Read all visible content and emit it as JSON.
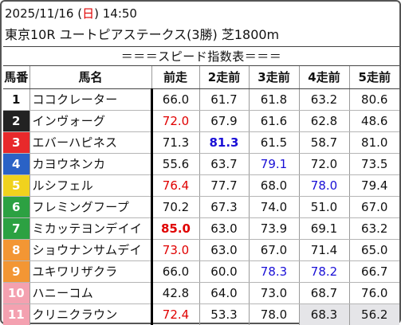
{
  "header": {
    "date": "2025/11/16",
    "weekday_open": " (",
    "weekday": "日",
    "weekday_close": ") ",
    "time": "14:50",
    "race": "東京10R ユートピアステークス(3勝) 芝1800m"
  },
  "section_title": "＝＝＝スピード指数表＝＝＝",
  "table": {
    "headers": [
      "馬番",
      "馬名",
      "前走",
      "2走前",
      "3走前",
      "4走前",
      "5走前"
    ],
    "rows": [
      {
        "no": "1",
        "name": "ココクレーター",
        "bg": "#ffffff",
        "fg": "#111111",
        "vals": [
          "66.0",
          "61.7",
          "61.8",
          "63.2",
          "80.6"
        ],
        "styles": [
          "",
          "",
          "",
          "",
          ""
        ]
      },
      {
        "no": "2",
        "name": "インヴォーグ",
        "bg": "#222222",
        "fg": "#ffffff",
        "vals": [
          "72.0",
          "67.9",
          "61.6",
          "62.8",
          "48.6"
        ],
        "styles": [
          "red",
          "",
          "",
          "",
          ""
        ]
      },
      {
        "no": "3",
        "name": "エバーハピネス",
        "bg": "#e8292b",
        "fg": "#ffffff",
        "vals": [
          "71.3",
          "81.3",
          "61.5",
          "58.7",
          "81.0"
        ],
        "styles": [
          "",
          "blue bold",
          "",
          "",
          ""
        ]
      },
      {
        "no": "4",
        "name": "カヨウネンカ",
        "bg": "#2a62c6",
        "fg": "#ffffff",
        "vals": [
          "55.6",
          "63.7",
          "79.1",
          "72.0",
          "73.5"
        ],
        "styles": [
          "",
          "",
          "blue",
          "",
          ""
        ]
      },
      {
        "no": "5",
        "name": "ルシフェル",
        "bg": "#f0d21e",
        "fg": "#ffffff",
        "vals": [
          "76.4",
          "77.7",
          "68.0",
          "78.0",
          "79.4"
        ],
        "styles": [
          "red",
          "",
          "",
          "blue",
          ""
        ]
      },
      {
        "no": "6",
        "name": "フレミングフープ",
        "bg": "#2ca142",
        "fg": "#ffffff",
        "vals": [
          "70.2",
          "67.3",
          "74.0",
          "51.0",
          "67.0"
        ],
        "styles": [
          "",
          "",
          "",
          "",
          ""
        ]
      },
      {
        "no": "7",
        "name": "ミカッテヨンデイイ",
        "bg": "#2ca142",
        "fg": "#ffffff",
        "vals": [
          "85.0",
          "63.0",
          "73.9",
          "69.1",
          "63.2"
        ],
        "styles": [
          "red bold",
          "",
          "",
          "",
          ""
        ]
      },
      {
        "no": "8",
        "name": "ショウナンサムデイ",
        "bg": "#f39634",
        "fg": "#ffffff",
        "vals": [
          "73.0",
          "63.0",
          "67.0",
          "71.4",
          "65.0"
        ],
        "styles": [
          "red",
          "",
          "",
          "",
          ""
        ]
      },
      {
        "no": "9",
        "name": "ユキワリザクラ",
        "bg": "#f39634",
        "fg": "#ffffff",
        "vals": [
          "66.0",
          "60.0",
          "78.3",
          "78.2",
          "66.7"
        ],
        "styles": [
          "",
          "",
          "blue",
          "blue",
          ""
        ]
      },
      {
        "no": "10",
        "name": "ハニーコム",
        "bg": "#f4a1b0",
        "fg": "#ffffff",
        "vals": [
          "42.8",
          "64.0",
          "73.0",
          "68.7",
          "76.0"
        ],
        "styles": [
          "",
          "",
          "",
          "",
          ""
        ]
      },
      {
        "no": "11",
        "name": "クリニクラウン",
        "bg": "#f4a1b0",
        "fg": "#ffffff",
        "vals": [
          "72.4",
          "53.3",
          "78.0",
          "68.3",
          "56.2"
        ],
        "styles": [
          "red",
          "",
          "",
          "gray",
          "gray"
        ]
      }
    ]
  }
}
